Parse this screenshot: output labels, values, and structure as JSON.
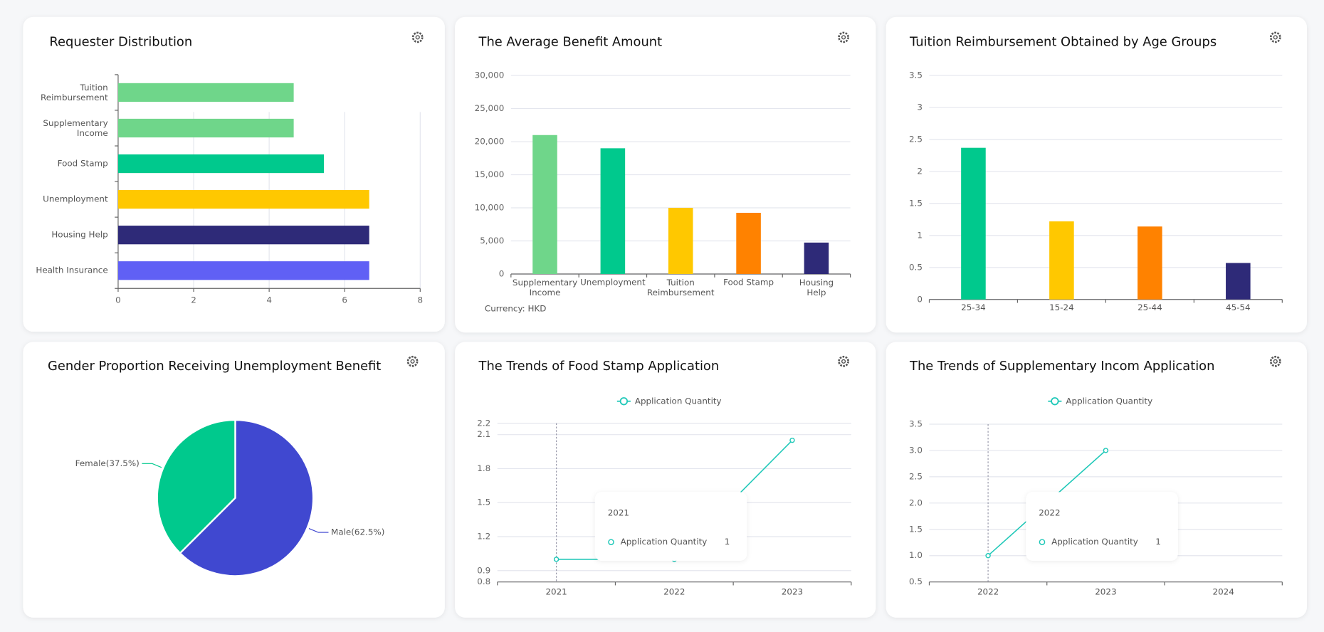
{
  "chart_data": [
    {
      "type": "hbar",
      "title": "Requester Distribution",
      "categories": [
        "Tuition Reimbursement",
        "Supplementary Income",
        "Food Stamp",
        "Unemployment",
        "Housing Help",
        "Health Insurance"
      ],
      "values": [
        4.65,
        4.65,
        5.45,
        6.65,
        6.65,
        6.65
      ],
      "colors": [
        "#6fd68a",
        "#6fd68a",
        "#00c98d",
        "#ffc800",
        "#2e2a78",
        "#6060f5"
      ],
      "xlim": [
        0,
        8
      ],
      "xticks": [
        0,
        2,
        4,
        6,
        8
      ],
      "grid": true
    },
    {
      "type": "bar",
      "title": "The Average Benefit Amount",
      "categories": [
        "Supplementary Income",
        "Unemployment",
        "Tuition Reimbursement",
        "Food Stamp",
        "Housing Help"
      ],
      "values": [
        21000,
        19000,
        10000,
        9250,
        4750
      ],
      "colors": [
        "#6fd68a",
        "#00c98d",
        "#ffc800",
        "#ff8200",
        "#2e2a78"
      ],
      "ylim": [
        0,
        30000
      ],
      "yticks": [
        0,
        {
          "value": 5000,
          "label": "5,000"
        },
        {
          "value": 10000,
          "label": "10,000"
        },
        {
          "value": 15000,
          "label": "15,000"
        },
        {
          "value": 20000,
          "label": "20,000"
        },
        {
          "value": 25000,
          "label": "25,000"
        },
        {
          "value": 30000,
          "label": "30,000"
        }
      ],
      "grid": true,
      "annotation": "Currency: HKD"
    },
    {
      "type": "bar",
      "title": "Tuition Reimbursement Obtained by Age Groups",
      "categories": [
        "25-34",
        "15-24",
        "25-44",
        "45-54"
      ],
      "values": [
        2.37,
        1.22,
        1.14,
        0.57
      ],
      "colors": [
        "#00c98d",
        "#ffc800",
        "#ff8200",
        "#2e2a78"
      ],
      "ylim": [
        0,
        3.5
      ],
      "yticks": [
        0,
        0.5,
        1,
        1.5,
        2,
        2.5,
        3,
        3.5
      ],
      "grid": true
    },
    {
      "type": "pie",
      "title": "Gender Proportion Receiving Unemployment Benefit",
      "values": [
        62.5,
        37.5
      ],
      "value_labels": [
        "Male(62.5%)",
        "Female(37.5%)"
      ],
      "colors": [
        "#4048d0",
        "#00c98d"
      ]
    },
    {
      "type": "line",
      "title": "The Trends of Food Stamp Application",
      "categories": [
        "2021",
        "2022",
        "2023"
      ],
      "series": [
        {
          "name": "Application Quantity",
          "color": "#1ec8b8",
          "values": [
            1,
            1,
            2.05
          ]
        }
      ],
      "ylim": [
        0.8,
        2.2
      ],
      "yticks": [
        0.8,
        0.9,
        1.2,
        1.5,
        1.8,
        2.1,
        2.2
      ],
      "grid": true,
      "legend": "top"
    },
    {
      "type": "line",
      "title": "The Trends of Supplementary Incom Application",
      "categories": [
        "2022",
        "2023",
        "2024"
      ],
      "series": [
        {
          "name": "Application Quantity",
          "color": "#1ec8b8",
          "values": [
            1,
            3,
            null
          ]
        }
      ],
      "ylim": [
        0.5,
        3.5
      ],
      "yticks": [
        0.5,
        {
          "value": 1,
          "label": "1.0"
        },
        1.5,
        {
          "value": 2,
          "label": "2.0"
        },
        2.5,
        {
          "value": 3,
          "label": "3.0"
        },
        3.5
      ],
      "grid": true,
      "legend": "top"
    }
  ]
}
